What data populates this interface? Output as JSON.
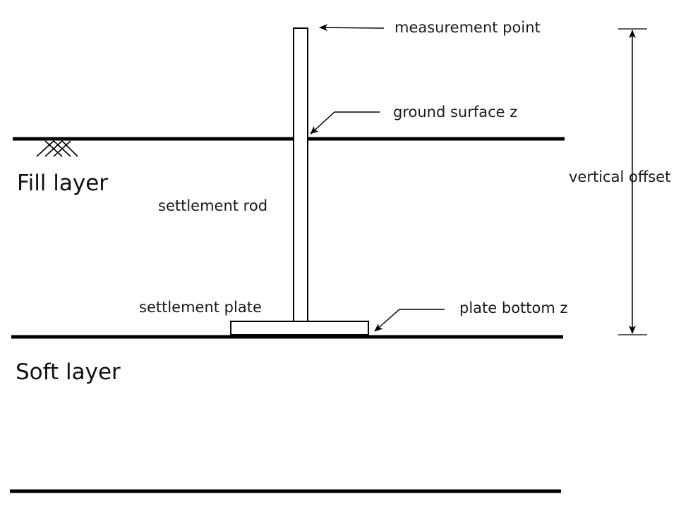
{
  "layers": {
    "fill_label": "Fill layer",
    "soft_label": "Soft layer"
  },
  "components": {
    "rod_label": "settlement rod",
    "plate_label": "settlement plate"
  },
  "annotations": {
    "measurement_point": "measurement point",
    "ground_surface": "ground surface z",
    "plate_bottom": "plate bottom z",
    "vertical_offset": "vertical offset"
  },
  "colors": {
    "line": "#000000",
    "text": "#1a1a1a",
    "background": "#ffffff"
  }
}
